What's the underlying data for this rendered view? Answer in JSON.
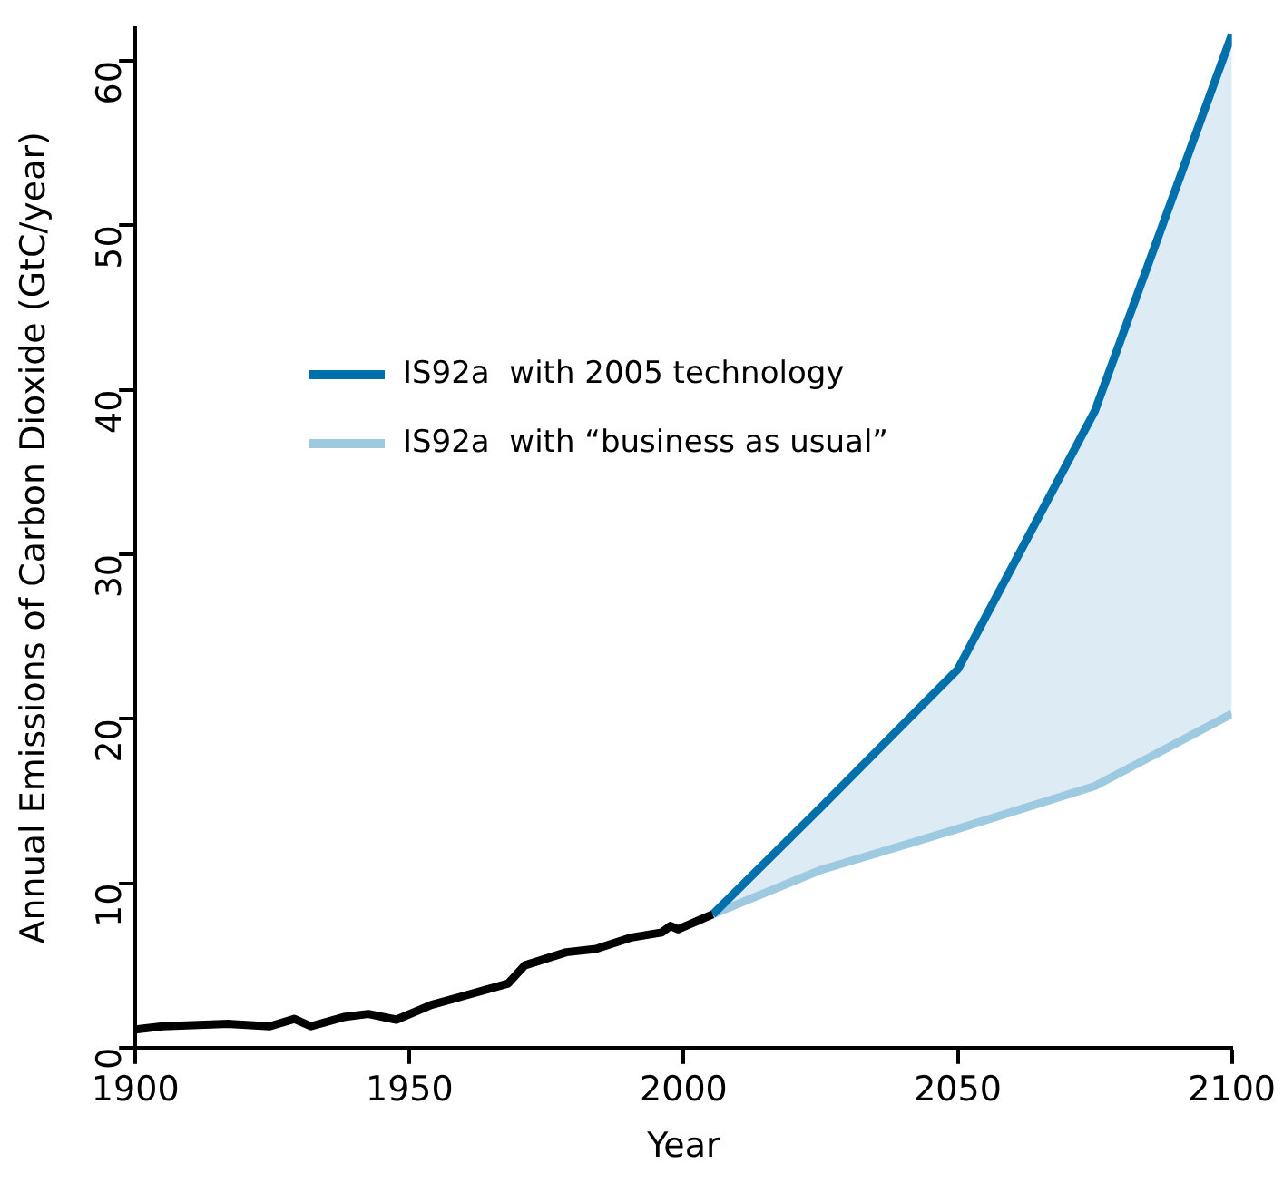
{
  "chart_data": {
    "type": "line",
    "xlabel": "Year",
    "ylabel": "Annual Emissions of Carbon Dioxide (GtC/year)",
    "xlim": [
      1900,
      2100
    ],
    "xticks": [
      1900,
      1950,
      2000,
      2050,
      2100
    ],
    "ylim": [
      0,
      62
    ],
    "yticks": [
      0,
      10,
      20,
      30,
      40,
      50,
      60
    ],
    "grid": false,
    "legend": "top left",
    "marker": "none",
    "line_style": "solid",
    "series": [
      {
        "color": "#000000",
        "x": [
          1900,
          1905,
          1917,
          1924.5,
          1929,
          1932,
          1938,
          1942.5,
          1947.6,
          1954,
          1968,
          1971,
          1978.6,
          1984,
          1990.5,
          1996,
          1997.6,
          1999,
          2005.3
        ],
        "values": [
          1.1,
          1.3,
          1.45,
          1.3,
          1.75,
          1.3,
          1.86,
          2.05,
          1.7,
          2.6,
          3.9,
          5.0,
          5.8,
          6.0,
          6.7,
          7.0,
          7.4,
          7.2,
          8.1
        ]
      },
      {
        "name": "IS92a  with 2005 technology",
        "color": "#0070ad",
        "x": [
          2005.3,
          2025,
          2050,
          2075,
          2100
        ],
        "values": [
          8.1,
          14.6,
          23.0,
          38.7,
          61.6
        ],
        "lower": [
          8.1,
          10.8,
          13.3,
          15.9,
          20.3
        ],
        "upper": [
          8.1,
          14.6,
          23.0,
          38.7,
          61.6
        ]
      },
      {
        "name": "IS92a  with “business as usual”",
        "color": "#9ecae1",
        "x": [
          2005.3,
          2025,
          2050,
          2075,
          2100
        ],
        "values": [
          8.1,
          10.8,
          13.3,
          15.9,
          20.3
        ]
      }
    ]
  }
}
